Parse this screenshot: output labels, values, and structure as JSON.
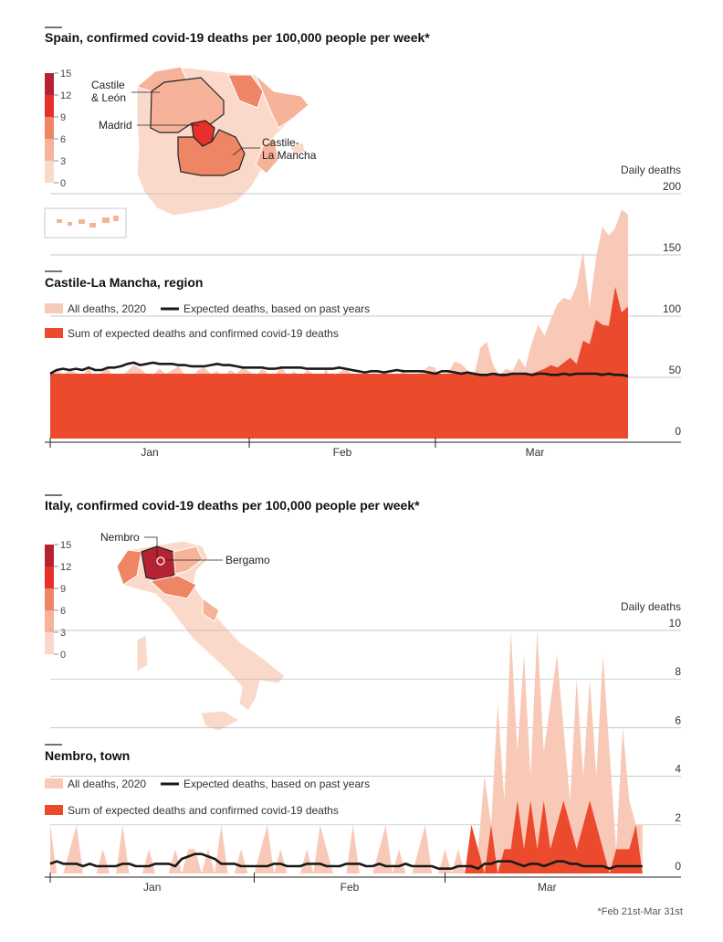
{
  "colors": {
    "all_deaths": "#f9c9b8",
    "covid_sum": "#ec4a2d",
    "expected": "#1a1a1a",
    "grid": "#b5b5b5",
    "scale": [
      "#fbd9ca",
      "#f6b39a",
      "#ee8565",
      "#e8302a",
      "#b32331"
    ]
  },
  "spain": {
    "map_title": "Spain, confirmed covid-19 deaths per 100,000 people per week*",
    "scale_ticks": [
      "15",
      "12",
      "9",
      "6",
      "3",
      "0"
    ],
    "labels": {
      "castile_leon_1": "Castile",
      "castile_leon_2": "& León",
      "madrid": "Madrid",
      "castile_lamancha_1": "Castile-",
      "castile_lamancha_2": "La Mancha"
    },
    "chart_title": "Castile-La Mancha, region",
    "legend": {
      "all": "All deaths, 2020",
      "expected": "Expected deaths, based on past years",
      "sum": "Sum of expected deaths and confirmed covid-19 deaths"
    },
    "axis_unit": "Daily deaths"
  },
  "italy": {
    "map_title": "Italy, confirmed covid-19 deaths per 100,000 people per week*",
    "scale_ticks": [
      "15",
      "12",
      "9",
      "6",
      "3",
      "0"
    ],
    "labels": {
      "nembro": "Nembro",
      "bergamo": "Bergamo"
    },
    "chart_title": "Nembro, town",
    "legend": {
      "all": "All deaths, 2020",
      "expected": "Expected deaths, based on past years",
      "sum": "Sum of expected deaths and confirmed covid-19 deaths"
    },
    "axis_unit": "Daily deaths"
  },
  "footnote": "*Feb 21st-Mar 31st",
  "chart_data": [
    {
      "type": "area",
      "title": "Castile-La Mancha, region",
      "ylabel": "Daily deaths",
      "ylim": [
        0,
        200
      ],
      "y_ticks": [
        0,
        50,
        100,
        150,
        200
      ],
      "x_tick_labels": [
        "Jan",
        "Feb",
        "Mar"
      ],
      "x_range": [
        0,
        91
      ],
      "month_boundaries": [
        0,
        31,
        60,
        91
      ],
      "grid": true,
      "axis_side": "right",
      "series": [
        {
          "name": "All deaths, 2020",
          "kind": "area",
          "values": [
            51,
            57,
            52,
            56,
            54,
            51,
            58,
            49,
            54,
            58,
            47,
            51,
            55,
            60,
            57,
            53,
            52,
            57,
            53,
            56,
            59,
            52,
            48,
            56,
            58,
            53,
            55,
            50,
            56,
            53,
            58,
            55,
            51,
            57,
            53,
            52,
            59,
            51,
            55,
            50,
            56,
            53,
            48,
            57,
            44,
            54,
            57,
            53,
            49,
            50,
            53,
            47,
            56,
            51,
            49,
            57,
            44,
            52,
            55,
            59,
            58,
            32,
            54,
            63,
            61,
            56,
            51,
            74,
            79,
            60,
            52,
            57,
            55,
            66,
            58,
            78,
            93,
            84,
            98,
            110,
            115,
            113,
            125,
            153,
            107,
            147,
            173,
            166,
            172,
            187,
            183
          ]
        },
        {
          "name": "Sum of expected deaths and confirmed covid-19 deaths",
          "kind": "area",
          "values": [
            53,
            53,
            53,
            53,
            53,
            53,
            53,
            53,
            53,
            53,
            53,
            53,
            53,
            53,
            53,
            53,
            53,
            53,
            53,
            53,
            53,
            53,
            53,
            53,
            53,
            53,
            53,
            53,
            53,
            53,
            53,
            53,
            53,
            53,
            53,
            53,
            53,
            53,
            53,
            53,
            53,
            53,
            53,
            53,
            53,
            53,
            53,
            53,
            53,
            53,
            53,
            53,
            53,
            53,
            53,
            53,
            53,
            53,
            53,
            53,
            53,
            53,
            53,
            53,
            53,
            53,
            53,
            53,
            53,
            53,
            53,
            53,
            53,
            53,
            53,
            53,
            55,
            57,
            60,
            58,
            62,
            66,
            61,
            80,
            77,
            97,
            93,
            92,
            124,
            103,
            108
          ]
        },
        {
          "name": "Expected deaths, based on past years",
          "kind": "line",
          "values": [
            53,
            56,
            57,
            56,
            57,
            56,
            58,
            56,
            56,
            58,
            58,
            59,
            61,
            62,
            60,
            61,
            62,
            61,
            61,
            61,
            60,
            60,
            59,
            59,
            59,
            60,
            61,
            60,
            60,
            59,
            58,
            58,
            58,
            58,
            57,
            57,
            58,
            58,
            58,
            58,
            57,
            57,
            57,
            57,
            57,
            58,
            57,
            56,
            55,
            54,
            55,
            55,
            54,
            55,
            56,
            55,
            55,
            55,
            55,
            54,
            53,
            55,
            55,
            54,
            53,
            54,
            53,
            52,
            52,
            53,
            52,
            52,
            53,
            53,
            53,
            52,
            53,
            53,
            52,
            52,
            53,
            52,
            53,
            53,
            53,
            53,
            52,
            53,
            52,
            52,
            51
          ]
        }
      ]
    },
    {
      "type": "area",
      "title": "Nembro, town",
      "ylabel": "Daily deaths",
      "ylim": [
        0,
        10
      ],
      "y_ticks": [
        0,
        2,
        4,
        6,
        8,
        10
      ],
      "x_tick_labels": [
        "Jan",
        "Feb",
        "Mar"
      ],
      "x_range": [
        0,
        91
      ],
      "month_boundaries": [
        0,
        31,
        60,
        91
      ],
      "grid": true,
      "axis_side": "right",
      "series": [
        {
          "name": "All deaths, 2020",
          "kind": "area",
          "values": [
            2,
            0,
            0,
            1,
            2,
            0,
            0,
            0,
            1,
            0,
            0,
            2,
            0,
            0,
            0,
            1,
            0,
            0,
            0,
            1,
            0,
            1,
            1,
            0,
            1,
            0,
            2,
            0,
            0,
            1,
            0,
            0,
            1,
            2,
            0,
            1,
            0,
            0,
            0,
            1,
            0,
            2,
            1,
            0,
            0,
            0,
            2,
            0,
            0,
            0,
            1,
            2,
            0,
            1,
            0,
            0,
            1,
            2,
            0,
            0,
            1,
            0,
            1,
            0,
            2,
            1,
            4,
            2,
            7,
            3,
            10,
            5,
            9,
            4,
            10,
            5,
            7,
            9,
            6,
            3,
            8,
            4,
            8,
            4,
            9,
            5,
            1,
            6,
            3,
            2,
            2
          ]
        },
        {
          "name": "Sum of expected deaths and confirmed covid-19 deaths",
          "kind": "area",
          "values": [
            0,
            0,
            0,
            0,
            0,
            0,
            0,
            0,
            0,
            0,
            0,
            0,
            0,
            0,
            0,
            0,
            0,
            0,
            0,
            0,
            0,
            0,
            0,
            0,
            0,
            0,
            0,
            0,
            0,
            0,
            0,
            0,
            0,
            0,
            0,
            0,
            0,
            0,
            0,
            0,
            0,
            0,
            0,
            0,
            0,
            0,
            0,
            0,
            0,
            0,
            0,
            0,
            0,
            0,
            0,
            0,
            0,
            0,
            0,
            0,
            0,
            0,
            0,
            0,
            2,
            1,
            0,
            2,
            0,
            1,
            1,
            3,
            1,
            3,
            1,
            3,
            1,
            2,
            3,
            2,
            1,
            2,
            3,
            2,
            1,
            0,
            1,
            1,
            1,
            2,
            0
          ]
        },
        {
          "name": "Expected deaths, based on past years",
          "kind": "line",
          "values": [
            0.4,
            0.5,
            0.4,
            0.4,
            0.4,
            0.3,
            0.4,
            0.3,
            0.3,
            0.3,
            0.3,
            0.4,
            0.4,
            0.3,
            0.3,
            0.3,
            0.4,
            0.4,
            0.4,
            0.3,
            0.6,
            0.7,
            0.8,
            0.8,
            0.7,
            0.6,
            0.4,
            0.4,
            0.4,
            0.3,
            0.3,
            0.3,
            0.3,
            0.3,
            0.4,
            0.4,
            0.3,
            0.3,
            0.3,
            0.4,
            0.4,
            0.4,
            0.3,
            0.3,
            0.3,
            0.4,
            0.4,
            0.4,
            0.3,
            0.3,
            0.4,
            0.3,
            0.3,
            0.3,
            0.4,
            0.3,
            0.3,
            0.3,
            0.3,
            0.2,
            0.2,
            0.2,
            0.3,
            0.3,
            0.3,
            0.2,
            0.4,
            0.4,
            0.5,
            0.5,
            0.5,
            0.4,
            0.3,
            0.4,
            0.4,
            0.3,
            0.4,
            0.5,
            0.5,
            0.4,
            0.4,
            0.3,
            0.3,
            0.3,
            0.3,
            0.2,
            0.3,
            0.3,
            0.3,
            0.3,
            0.3
          ]
        }
      ]
    }
  ]
}
